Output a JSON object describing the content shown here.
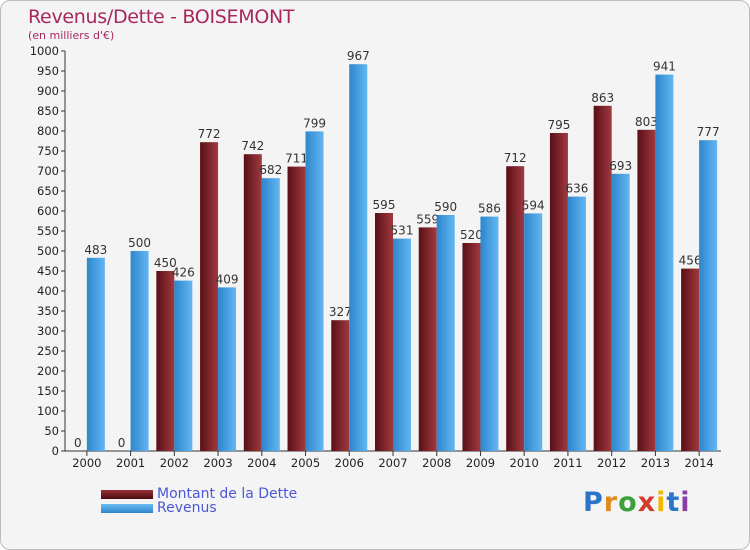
{
  "header": {
    "title": "Revenus/Dette - BOISEMONT",
    "subtitle": "(en milliers d'€)"
  },
  "colors": {
    "dette": "#7a1f25",
    "revenus": "#3f9ee0",
    "title": "#a8285c",
    "legend_text": "#4b57d6"
  },
  "chart_data": {
    "type": "bar",
    "title": "Revenus/Dette - BOISEMONT",
    "subtitle": "(en milliers d'€)",
    "categories": [
      "2000",
      "2001",
      "2002",
      "2003",
      "2004",
      "2005",
      "2006",
      "2007",
      "2008",
      "2009",
      "2010",
      "2011",
      "2012",
      "2013",
      "2014"
    ],
    "series": [
      {
        "name": "Montant de la Dette",
        "values": [
          0,
          0,
          450,
          772,
          742,
          711,
          327,
          595,
          559,
          520,
          712,
          795,
          863,
          803,
          456
        ]
      },
      {
        "name": "Revenus",
        "values": [
          483,
          500,
          426,
          409,
          682,
          799,
          967,
          531,
          590,
          586,
          594,
          636,
          693,
          941,
          777
        ]
      }
    ],
    "ylim": [
      0,
      1000
    ],
    "yticks": [
      0,
      50,
      100,
      150,
      200,
      250,
      300,
      350,
      400,
      450,
      500,
      550,
      600,
      650,
      700,
      750,
      800,
      850,
      900,
      950,
      1000
    ],
    "grid": false,
    "legend_position": "bottom-left"
  },
  "logo": {
    "letters": [
      "P",
      "r",
      "o",
      "x",
      "i",
      "t",
      "i"
    ],
    "colors": [
      "#2b74c7",
      "#e08a1e",
      "#3aa03a",
      "#d23a2a",
      "#f0b800",
      "#2b74c7",
      "#8b3fa5"
    ]
  }
}
